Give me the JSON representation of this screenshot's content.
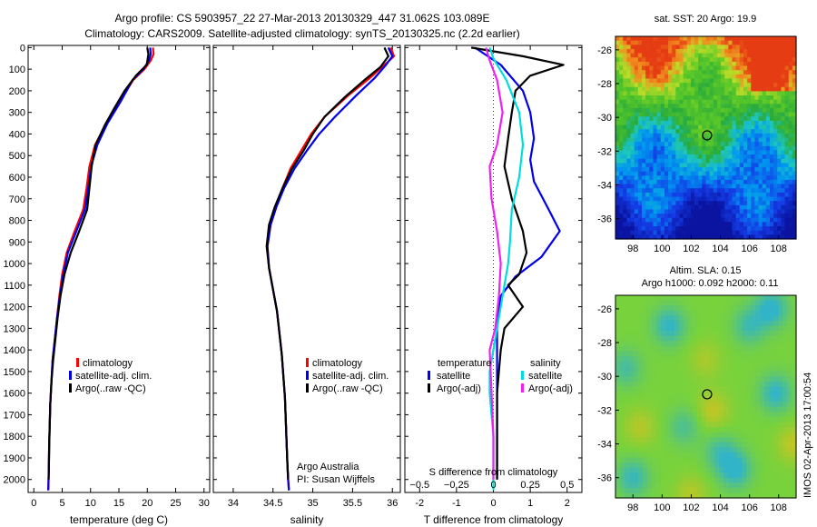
{
  "header": {
    "line1": "Argo profile: CS 5903957_22 27-Mar-2013 20130329_447 31.062S 103.089E",
    "line2": "Climatology: CARS2009. Satellite-adjusted climatology: synTS_20130325.nc (2.2d earlier)"
  },
  "side_label": "IMOS 02-Apr-2013 17:00:54",
  "chart_data": [
    {
      "type": "line",
      "id": "temperature",
      "xlabel": "temperature (deg C)",
      "ylabel": "",
      "xlim": [
        -1,
        31
      ],
      "ylim": [
        2060,
        -10
      ],
      "xticks": [
        0,
        5,
        10,
        15,
        20,
        25,
        30
      ],
      "yticks": [
        0,
        100,
        200,
        300,
        400,
        500,
        600,
        700,
        800,
        900,
        1000,
        1100,
        1200,
        1300,
        1400,
        1500,
        1600,
        1700,
        1800,
        1900,
        2000
      ],
      "legend": [
        "climatology",
        "satellite-adj. clim.",
        "Argo(..raw -QC)"
      ],
      "series": [
        {
          "name": "climatology",
          "color": "#ff0000",
          "x": [
            21.0,
            21.1,
            20.6,
            19.5,
            17.5,
            15.2,
            12.8,
            10.8,
            9.8,
            9.3,
            8.7,
            7.2,
            5.8,
            5.0,
            4.5,
            4.1,
            3.7,
            3.3,
            3.1,
            2.9,
            2.8,
            2.7,
            2.65,
            2.6,
            2.55
          ],
          "y": [
            0,
            30,
            60,
            100,
            150,
            250,
            350,
            450,
            550,
            650,
            750,
            850,
            950,
            1050,
            1150,
            1250,
            1350,
            1450,
            1550,
            1650,
            1750,
            1850,
            1950,
            2000,
            2050
          ]
        },
        {
          "name": "satellite-adj. clim.",
          "color": "#0000ee",
          "x": [
            20.5,
            20.6,
            20.3,
            19.3,
            17.4,
            15.3,
            13.0,
            11.2,
            10.1,
            9.6,
            9.0,
            7.5,
            6.0,
            5.2,
            4.6,
            4.1,
            3.7,
            3.3,
            3.1,
            2.9,
            2.8,
            2.7,
            2.65,
            2.6,
            2.55
          ],
          "y": [
            0,
            30,
            60,
            100,
            150,
            250,
            350,
            450,
            550,
            650,
            750,
            850,
            950,
            1050,
            1150,
            1250,
            1350,
            1450,
            1550,
            1650,
            1750,
            1850,
            1950,
            2000,
            2050
          ]
        },
        {
          "name": "Argo(..raw -QC)",
          "color": "#000000",
          "x": [
            20.0,
            20.2,
            19.9,
            18.0,
            16.0,
            14.2,
            12.5,
            10.9,
            10.2,
            9.8,
            9.4,
            8.0,
            6.5,
            5.4,
            4.7,
            4.2,
            3.8,
            3.4,
            3.1,
            2.9,
            2.8,
            2.7,
            2.65,
            2.6
          ],
          "y": [
            0,
            30,
            80,
            130,
            200,
            280,
            360,
            450,
            550,
            650,
            750,
            850,
            950,
            1050,
            1150,
            1250,
            1350,
            1450,
            1550,
            1650,
            1750,
            1850,
            1950,
            2000
          ]
        }
      ]
    },
    {
      "type": "line",
      "id": "salinity",
      "xlabel": "salinity",
      "xlim": [
        33.75,
        36.1
      ],
      "ylim": [
        2060,
        -10
      ],
      "xticks": [
        34,
        34.5,
        35,
        35.5,
        36
      ],
      "xticklabels": [
        "34",
        "34.5",
        "35",
        "35.5",
        "36"
      ],
      "legend": [
        "climatology",
        "satellite-adj. clim.",
        "Argo(..raw -QC)"
      ],
      "annotations": [
        "Argo Australia",
        "PI: Susan Wijffels"
      ],
      "series": [
        {
          "name": "climatology",
          "color": "#ff0000",
          "x": [
            35.98,
            36.02,
            35.9,
            35.72,
            35.45,
            35.15,
            34.98,
            34.85,
            34.72,
            34.62,
            34.54,
            34.47,
            34.43,
            34.45,
            34.5,
            34.55,
            34.58,
            34.61,
            34.63,
            34.65,
            34.66,
            34.67,
            34.68,
            34.69,
            34.7
          ],
          "y": [
            0,
            40,
            80,
            140,
            220,
            320,
            400,
            480,
            560,
            650,
            740,
            820,
            920,
            1020,
            1120,
            1220,
            1320,
            1420,
            1520,
            1620,
            1720,
            1820,
            1920,
            2000,
            2050
          ]
        },
        {
          "name": "satellite-adj. clim.",
          "color": "#0000ee",
          "x": [
            35.95,
            36.0,
            35.92,
            35.78,
            35.55,
            35.28,
            35.08,
            34.92,
            34.77,
            34.64,
            34.54,
            34.47,
            34.43,
            34.45,
            34.5,
            34.55,
            34.58,
            34.61,
            34.63,
            34.65,
            34.66,
            34.67,
            34.68,
            34.69,
            34.7
          ],
          "y": [
            0,
            40,
            80,
            140,
            220,
            320,
            400,
            480,
            560,
            650,
            740,
            820,
            920,
            1020,
            1120,
            1220,
            1320,
            1420,
            1520,
            1620,
            1720,
            1820,
            1920,
            2000,
            2050
          ]
        },
        {
          "name": "Argo(..raw -QC)",
          "color": "#000000",
          "x": [
            35.9,
            35.95,
            35.85,
            35.65,
            35.4,
            35.15,
            35.0,
            34.88,
            34.74,
            34.62,
            34.52,
            34.45,
            34.42,
            34.45,
            34.5,
            34.55,
            34.58,
            34.61,
            34.63,
            34.65,
            34.66,
            34.67,
            34.68,
            34.69
          ],
          "y": [
            0,
            40,
            90,
            150,
            230,
            320,
            400,
            480,
            560,
            650,
            740,
            820,
            920,
            1020,
            1120,
            1220,
            1320,
            1420,
            1520,
            1620,
            1720,
            1820,
            1920,
            2000
          ]
        }
      ]
    },
    {
      "type": "line",
      "id": "difference",
      "xlabel": "T difference from climatology",
      "top_xlabel": "S difference from climatology",
      "xlim": [
        -2.4,
        2.4
      ],
      "ylim": [
        2060,
        -10
      ],
      "xticks": [
        -2,
        -1,
        0,
        1,
        2
      ],
      "top_xticks": [
        -0.5,
        -0.25,
        0,
        0.25,
        0.5
      ],
      "top_xticklabels": [
        "−0.5",
        "−0.25",
        "0",
        "0.25",
        "0.5"
      ],
      "legend_title_t": "temperature",
      "legend_title_s": "salinity",
      "legend": [
        "satellite",
        "Argo(-adj)",
        "satellite",
        "Argo(-adj)"
      ],
      "series": [
        {
          "name": "T satellite",
          "color": "#0000ee",
          "x": [
            -0.5,
            0.2,
            0.8,
            1.0,
            1.1,
            1.0,
            1.1,
            1.5,
            1.8,
            1.3,
            0.6,
            0.2,
            0.1,
            0.1,
            0.1,
            0.1,
            0.1,
            0.1,
            0.1,
            0.1,
            0.1
          ],
          "y": [
            0,
            80,
            200,
            300,
            420,
            520,
            620,
            750,
            850,
            970,
            1060,
            1150,
            1250,
            1350,
            1450,
            1550,
            1650,
            1750,
            1850,
            1950,
            2000
          ]
        },
        {
          "name": "T Argo(-adj)",
          "color": "#000000",
          "x": [
            -0.6,
            0.8,
            1.9,
            1.0,
            0.6,
            0.5,
            0.4,
            0.3,
            0.5,
            0.8,
            0.9,
            0.7,
            0.4,
            0.8,
            0.3,
            0.2,
            0.15,
            0.1,
            0.1,
            0.1,
            0.1,
            0.1
          ],
          "y": [
            0,
            40,
            80,
            130,
            200,
            300,
            420,
            550,
            700,
            850,
            950,
            1050,
            1100,
            1200,
            1300,
            1400,
            1500,
            1600,
            1700,
            1800,
            1900,
            2000
          ]
        },
        {
          "name": "S satellite",
          "color": "#00dddd",
          "x": [
            -0.1,
            0.0,
            0.35,
            0.7,
            0.8,
            0.7,
            0.5,
            0.45,
            0.4,
            0.3,
            0.2,
            0.1,
            0.0,
            -0.1,
            -0.1,
            -0.05,
            0.0,
            0.0,
            0.0,
            0.0,
            0.0
          ],
          "y": [
            0,
            50,
            150,
            300,
            450,
            600,
            750,
            900,
            1000,
            1100,
            1200,
            1300,
            1400,
            1500,
            1600,
            1700,
            1800,
            1900,
            1950,
            2000,
            2050
          ]
        },
        {
          "name": "S Argo(-adj)",
          "color": "#ee22ee",
          "x": [
            -0.2,
            -0.1,
            0.1,
            0.25,
            0.1,
            -0.1,
            -0.05,
            0.1,
            0.2,
            0.15,
            0.05,
            -0.1,
            -0.05,
            0.0,
            0.0
          ],
          "y": [
            0,
            60,
            150,
            300,
            450,
            550,
            700,
            850,
            1000,
            1150,
            1300,
            1400,
            1600,
            1800,
            2000
          ]
        }
      ]
    },
    {
      "type": "heatmap",
      "id": "sst_map",
      "title": "sat. SST: 20 Argo: 19.9",
      "xticks": [
        98,
        100,
        102,
        104,
        106,
        108
      ],
      "yticks": [
        -26,
        -28,
        -30,
        -32,
        -34,
        -36
      ],
      "xlim": [
        96.8,
        109.2
      ],
      "ylim": [
        -37.2,
        -25.2
      ],
      "marker": {
        "lon": 103.089,
        "lat": -31.062
      }
    },
    {
      "type": "heatmap",
      "id": "sla_map",
      "title": "Altim. SLA: 0.15",
      "subtitle": "Argo h1000: 0.092 h2000: 0.11",
      "xticks": [
        98,
        100,
        102,
        104,
        106,
        108
      ],
      "yticks": [
        -26,
        -28,
        -30,
        -32,
        -34,
        -36
      ],
      "xlim": [
        96.8,
        109.2
      ],
      "ylim": [
        -37.2,
        -25.2
      ],
      "marker": {
        "lon": 103.089,
        "lat": -31.062
      }
    }
  ]
}
